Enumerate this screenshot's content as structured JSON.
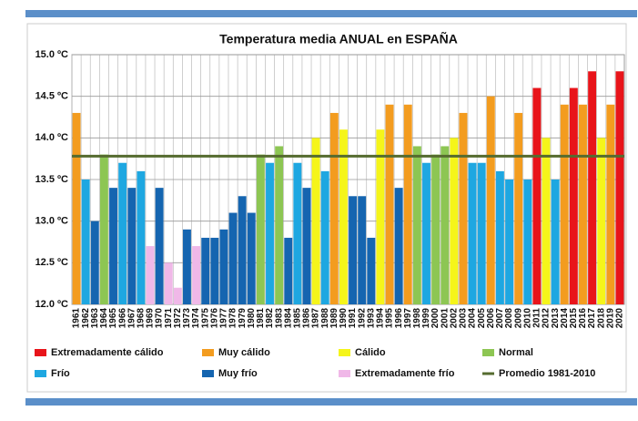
{
  "chart_data": {
    "type": "bar",
    "title": "Temperatura media ANUAL en ESPAÑA",
    "categories": [
      "1961",
      "1962",
      "1963",
      "1964",
      "1965",
      "1966",
      "1967",
      "1968",
      "1969",
      "1970",
      "1971",
      "1972",
      "1973",
      "1974",
      "1975",
      "1976",
      "1977",
      "1978",
      "1979",
      "1980",
      "1981",
      "1982",
      "1983",
      "1984",
      "1985",
      "1986",
      "1987",
      "1988",
      "1989",
      "1990",
      "1991",
      "1992",
      "1993",
      "1994",
      "1995",
      "1996",
      "1997",
      "1998",
      "1999",
      "2000",
      "2001",
      "2002",
      "2003",
      "2004",
      "2005",
      "2006",
      "2007",
      "2008",
      "2009",
      "2010",
      "2011",
      "2012",
      "2013",
      "2014",
      "2015",
      "2016",
      "2017",
      "2018",
      "2019",
      "2020"
    ],
    "values": [
      14.3,
      13.5,
      13.0,
      13.8,
      13.4,
      13.7,
      13.4,
      13.6,
      12.7,
      13.4,
      12.5,
      12.2,
      12.9,
      12.7,
      12.8,
      12.8,
      12.9,
      13.1,
      13.3,
      13.1,
      13.8,
      13.7,
      13.9,
      12.8,
      13.7,
      13.4,
      14.0,
      13.6,
      14.3,
      14.1,
      13.3,
      13.3,
      12.8,
      14.1,
      14.4,
      13.4,
      14.4,
      13.9,
      13.7,
      13.8,
      13.9,
      14.0,
      14.3,
      13.7,
      13.7,
      14.5,
      13.6,
      13.5,
      14.3,
      13.5,
      14.6,
      14.0,
      13.5,
      14.4,
      14.6,
      14.4,
      14.8,
      14.0,
      14.4,
      14.8
    ],
    "colors": [
      "#f39c1f",
      "#1ea7e1",
      "#1565b0",
      "#8dc653",
      "#1565b0",
      "#1ea7e1",
      "#1565b0",
      "#1ea7e1",
      "#f0b8e8",
      "#1565b0",
      "#f0b8e8",
      "#f0b8e8",
      "#1565b0",
      "#f0b8e8",
      "#1565b0",
      "#1565b0",
      "#1565b0",
      "#1565b0",
      "#1565b0",
      "#1565b0",
      "#8dc653",
      "#1ea7e1",
      "#8dc653",
      "#1565b0",
      "#1ea7e1",
      "#1565b0",
      "#f5f51a",
      "#1ea7e1",
      "#f39c1f",
      "#f5f51a",
      "#1565b0",
      "#1565b0",
      "#1565b0",
      "#f5f51a",
      "#f39c1f",
      "#1565b0",
      "#f39c1f",
      "#8dc653",
      "#1ea7e1",
      "#8dc653",
      "#8dc653",
      "#f5f51a",
      "#f39c1f",
      "#1ea7e1",
      "#1ea7e1",
      "#f39c1f",
      "#1ea7e1",
      "#1ea7e1",
      "#f39c1f",
      "#1ea7e1",
      "#e8141a",
      "#f5f51a",
      "#1ea7e1",
      "#f39c1f",
      "#e8141a",
      "#f39c1f",
      "#e8141a",
      "#f5f51a",
      "#f39c1f",
      "#e8141a"
    ],
    "legend": [
      {
        "name": "Extremadamente cálido",
        "color": "#e8141a"
      },
      {
        "name": "Muy cálido",
        "color": "#f39c1f"
      },
      {
        "name": "Cálido",
        "color": "#f5f51a"
      },
      {
        "name": "Normal",
        "color": "#8dc653"
      },
      {
        "name": "Frío",
        "color": "#1ea7e1"
      },
      {
        "name": "Muy frío",
        "color": "#1565b0"
      },
      {
        "name": "Extremadamente frío",
        "color": "#f0b8e8"
      }
    ],
    "average": {
      "name": "Promedio 1981-2010",
      "color": "#556b2f",
      "value": 13.78
    },
    "ylim": [
      12.0,
      15.0
    ],
    "yticks": [
      {
        "value": 12.0,
        "label": "12.0 ºC"
      },
      {
        "value": 12.5,
        "label": "12.5 ºC"
      },
      {
        "value": 13.0,
        "label": "13.0 ºC"
      },
      {
        "value": 13.5,
        "label": "13.5 ºC"
      },
      {
        "value": 14.0,
        "label": "14.0 ºC"
      },
      {
        "value": 14.5,
        "label": "14.5 ºC"
      },
      {
        "value": 15.0,
        "label": "15.0 ºC"
      }
    ],
    "grid": true
  }
}
